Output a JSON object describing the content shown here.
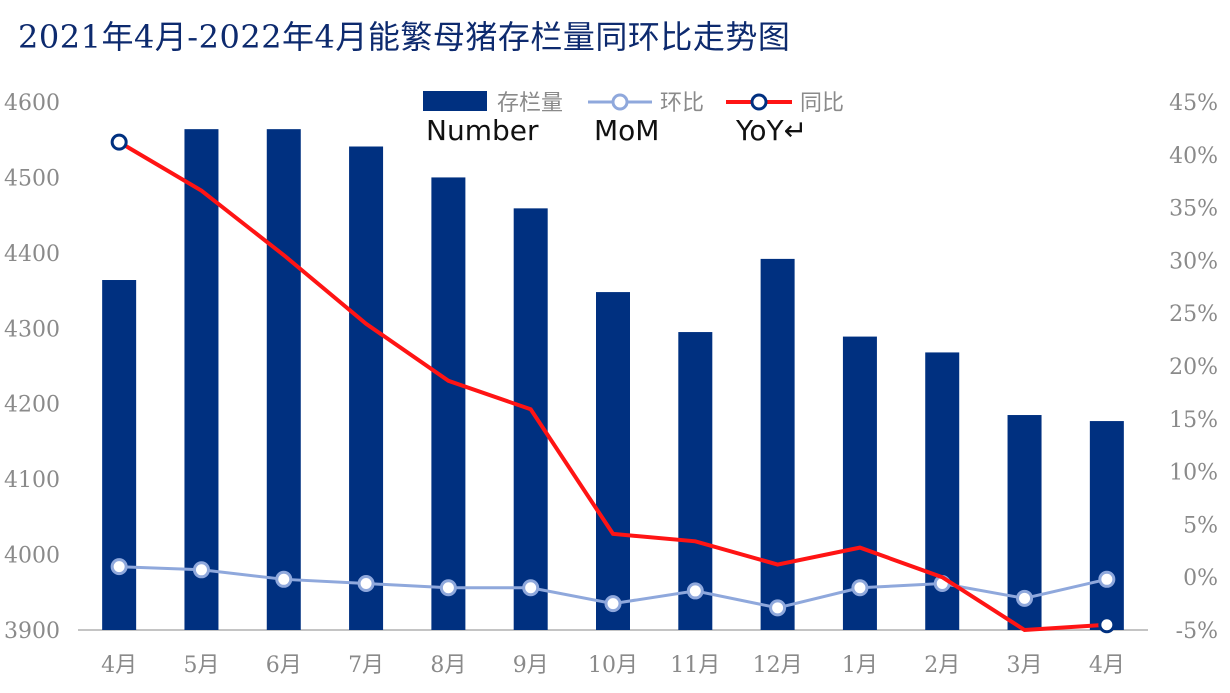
{
  "chart_data": {
    "type": "bar",
    "title": "2021年4月-2022年4月能繁母猪存栏量同环比走势图",
    "categories": [
      "4月",
      "5月",
      "6月",
      "7月",
      "8月",
      "9月",
      "10月",
      "11月",
      "12月",
      "1月",
      "2月",
      "3月",
      "4月"
    ],
    "series": [
      {
        "name": "存栏量",
        "name_en": "Number",
        "type": "bar",
        "axis": "left",
        "color": "#003080",
        "values": [
          4364,
          4564,
          4564,
          4541,
          4500,
          4459,
          4348,
          4295,
          4392,
          4289,
          4268,
          4185,
          4177
        ]
      },
      {
        "name": "环比",
        "name_en": "MoM",
        "type": "line",
        "axis": "right",
        "color": "#8fa8dc",
        "values": [
          1.0,
          0.7,
          -0.2,
          -0.6,
          -1.0,
          -1.0,
          -2.5,
          -1.3,
          -2.9,
          -1.0,
          -0.6,
          -2.0,
          -0.2
        ]
      },
      {
        "name": "同比",
        "name_en": "YoY↵",
        "type": "line",
        "axis": "right",
        "color": "#ff1414",
        "marker_color": "#003080",
        "values": [
          41.2,
          36.6,
          30.5,
          24.0,
          18.6,
          15.9,
          4.1,
          3.4,
          1.2,
          2.8,
          0.0,
          -5.0,
          -4.5
        ]
      }
    ],
    "yleft": {
      "ticks": [
        "4600",
        "4500",
        "4400",
        "4300",
        "4200",
        "4100",
        "4000",
        "3900"
      ],
      "lim": [
        3900,
        4600
      ]
    },
    "yright": {
      "ticks": [
        "45%",
        "40%",
        "35%",
        "30%",
        "25%",
        "20%",
        "15%",
        "10%",
        "5%",
        "0%",
        "-5%"
      ],
      "lim": [
        -5,
        45
      ]
    },
    "grid": false,
    "legend": "top-center"
  },
  "colors": {
    "title": "#0d2a6e",
    "axis": "#8a8a8a"
  }
}
